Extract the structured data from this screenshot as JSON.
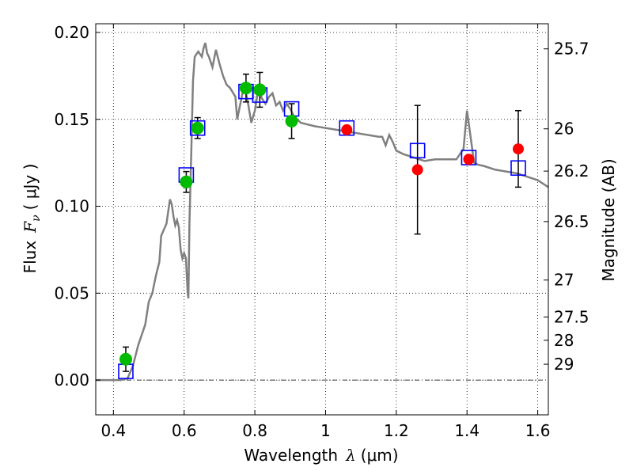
{
  "chart_data": {
    "type": "scatter",
    "xlabel_text": "Wavelength",
    "xlabel_symbol": "λ",
    "xlabel_unit": "(μm)",
    "ylabel_text": "Flux",
    "ylabel_symbol": "F",
    "ylabel_sub": "ν",
    "ylabel_unit": "( μJy )",
    "y2label": "Magnitude (AB)",
    "xlim": [
      0.35,
      1.63
    ],
    "ylim": [
      -0.02,
      0.205
    ],
    "x_ticks": [
      0.4,
      0.6,
      0.8,
      1.0,
      1.2,
      1.4,
      1.6
    ],
    "x_tick_labels": [
      "0.4",
      "0.6",
      "0.8",
      "1",
      "1.2",
      "1.4",
      "1.6"
    ],
    "y_ticks": [
      0.0,
      0.05,
      0.1,
      0.15,
      0.2
    ],
    "y_tick_labels": [
      "0.00",
      "0.05",
      "0.10",
      "0.15",
      "0.20"
    ],
    "mag_ticks": [
      25.7,
      26,
      26.2,
      26.5,
      27,
      27.5,
      28,
      29
    ],
    "mag_tick_labels": [
      "25.7",
      "26",
      "26.2",
      "26.5",
      "27",
      "27.5",
      "28",
      "29"
    ],
    "grid": true,
    "colors": {
      "model": "#808080",
      "observed_hst": "#00bb00",
      "observed_ground": "#ff0000",
      "model_photometry": "#0000ff",
      "errorbar": "#000000",
      "zero_line": "#000000"
    },
    "model_spectrum": {
      "x": [
        0.35,
        0.42,
        0.44,
        0.455,
        0.47,
        0.49,
        0.5,
        0.51,
        0.52,
        0.53,
        0.535,
        0.55,
        0.56,
        0.565,
        0.57,
        0.575,
        0.58,
        0.585,
        0.59,
        0.595,
        0.6,
        0.605,
        0.61,
        0.612,
        0.615,
        0.62,
        0.625,
        0.63,
        0.64,
        0.65,
        0.655,
        0.66,
        0.665,
        0.67,
        0.68,
        0.69,
        0.7,
        0.71,
        0.72,
        0.73,
        0.745,
        0.75,
        0.76,
        0.77,
        0.78,
        0.79,
        0.8,
        0.81,
        0.82,
        0.83,
        0.84,
        0.85,
        0.86,
        0.87,
        0.88,
        0.89,
        0.9,
        0.91,
        0.92,
        0.93,
        0.95,
        0.97,
        1.0,
        1.03,
        1.06,
        1.09,
        1.12,
        1.15,
        1.16,
        1.17,
        1.18,
        1.19,
        1.2,
        1.22,
        1.25,
        1.28,
        1.31,
        1.34,
        1.37,
        1.39,
        1.4,
        1.41,
        1.42,
        1.43,
        1.45,
        1.48,
        1.51,
        1.54,
        1.57,
        1.6,
        1.63
      ],
      "y": [
        0.0,
        0.0,
        0.001,
        0.008,
        0.02,
        0.032,
        0.045,
        0.05,
        0.06,
        0.068,
        0.083,
        0.09,
        0.104,
        0.101,
        0.094,
        0.089,
        0.092,
        0.088,
        0.075,
        0.07,
        0.073,
        0.07,
        0.05,
        0.047,
        0.09,
        0.13,
        0.172,
        0.186,
        0.189,
        0.186,
        0.191,
        0.194,
        0.188,
        0.186,
        0.18,
        0.19,
        0.182,
        0.175,
        0.17,
        0.168,
        0.163,
        0.15,
        0.16,
        0.17,
        0.16,
        0.148,
        0.155,
        0.168,
        0.162,
        0.159,
        0.163,
        0.165,
        0.158,
        0.16,
        0.155,
        0.159,
        0.156,
        0.152,
        0.15,
        0.148,
        0.147,
        0.146,
        0.145,
        0.144,
        0.143,
        0.142,
        0.141,
        0.14,
        0.14,
        0.135,
        0.141,
        0.137,
        0.132,
        0.13,
        0.128,
        0.126,
        0.127,
        0.127,
        0.127,
        0.133,
        0.155,
        0.14,
        0.125,
        0.124,
        0.123,
        0.121,
        0.12,
        0.119,
        0.117,
        0.115,
        0.111
      ]
    },
    "model_photometry": {
      "x": [
        0.435,
        0.606,
        0.638,
        0.775,
        0.814,
        0.904,
        1.06,
        1.26,
        1.405,
        1.545
      ],
      "y": [
        0.005,
        0.118,
        0.145,
        0.166,
        0.164,
        0.156,
        0.145,
        0.132,
        0.128,
        0.122
      ]
    },
    "observed_hst": {
      "x": [
        0.435,
        0.606,
        0.638,
        0.775,
        0.814,
        0.904
      ],
      "y": [
        0.012,
        0.114,
        0.145,
        0.168,
        0.167,
        0.149
      ],
      "yerr": [
        0.007,
        0.006,
        0.006,
        0.008,
        0.01,
        0.01
      ]
    },
    "observed_ground": {
      "x": [
        1.06,
        1.26,
        1.405,
        1.545
      ],
      "y": [
        0.144,
        0.121,
        0.127,
        0.133
      ],
      "yerr": [
        0.0,
        0.037,
        0.0,
        0.022
      ]
    }
  }
}
